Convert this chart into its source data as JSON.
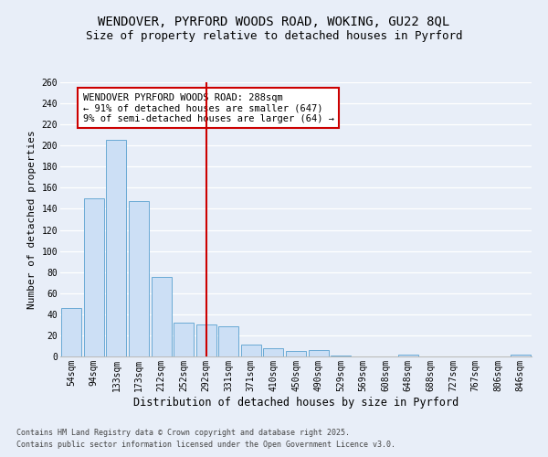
{
  "title_line1": "WENDOVER, PYRFORD WOODS ROAD, WOKING, GU22 8QL",
  "title_line2": "Size of property relative to detached houses in Pyrford",
  "xlabel": "Distribution of detached houses by size in Pyrford",
  "ylabel": "Number of detached properties",
  "categories": [
    "54sqm",
    "94sqm",
    "133sqm",
    "173sqm",
    "212sqm",
    "252sqm",
    "292sqm",
    "331sqm",
    "371sqm",
    "410sqm",
    "450sqm",
    "490sqm",
    "529sqm",
    "569sqm",
    "608sqm",
    "648sqm",
    "688sqm",
    "727sqm",
    "767sqm",
    "806sqm",
    "846sqm"
  ],
  "values": [
    46,
    150,
    205,
    147,
    75,
    32,
    30,
    29,
    11,
    8,
    5,
    6,
    1,
    0,
    0,
    2,
    0,
    0,
    0,
    0,
    2
  ],
  "bar_color": "#ccdff5",
  "bar_edge_color": "#6aaad4",
  "vline_color": "#cc0000",
  "annotation_text": "WENDOVER PYRFORD WOODS ROAD: 288sqm\n← 91% of detached houses are smaller (647)\n9% of semi-detached houses are larger (64) →",
  "annotation_box_color": "#ffffff",
  "annotation_box_edge": "#cc0000",
  "ylim": [
    0,
    260
  ],
  "yticks": [
    0,
    20,
    40,
    60,
    80,
    100,
    120,
    140,
    160,
    180,
    200,
    220,
    240,
    260
  ],
  "footnote1": "Contains HM Land Registry data © Crown copyright and database right 2025.",
  "footnote2": "Contains public sector information licensed under the Open Government Licence v3.0.",
  "background_color": "#e8eef8",
  "grid_color": "#ffffff",
  "title_fontsize": 10,
  "subtitle_fontsize": 9,
  "tick_fontsize": 7,
  "ylabel_fontsize": 8,
  "xlabel_fontsize": 8.5,
  "annot_fontsize": 7.5,
  "footnote_fontsize": 6
}
